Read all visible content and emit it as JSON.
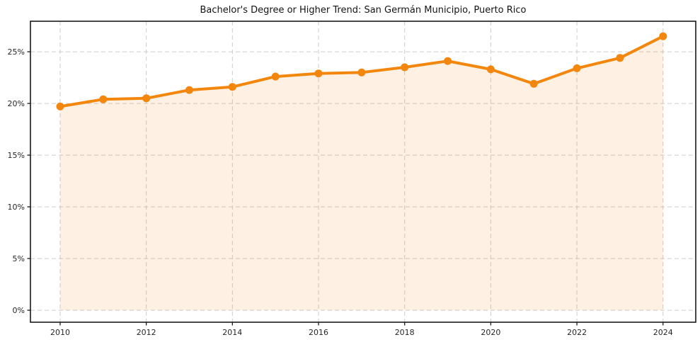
{
  "page": {
    "background": "#ffffff"
  },
  "chart_data": {
    "type": "line",
    "title": "Bachelor's Degree or Higher Trend: San Germán Municipio, Puerto Rico",
    "series": [
      {
        "name": "Bachelor's degree or higher",
        "x": [
          2010,
          2011,
          2012,
          2013,
          2014,
          2015,
          2016,
          2017,
          2018,
          2019,
          2020,
          2021,
          2022,
          2023,
          2024
        ],
        "values": [
          19.7,
          20.4,
          20.5,
          21.3,
          21.6,
          22.6,
          22.9,
          23.0,
          23.5,
          24.1,
          23.3,
          21.9,
          23.4,
          24.4,
          26.5
        ],
        "unit": "%"
      }
    ],
    "x_ticks": [
      2010,
      2012,
      2014,
      2016,
      2018,
      2020,
      2022,
      2024
    ],
    "x_tick_labels": [
      "2010",
      "2012",
      "2014",
      "2016",
      "2018",
      "2020",
      "2022",
      "2024"
    ],
    "y_ticks": [
      0,
      5,
      10,
      15,
      20,
      25
    ],
    "y_tick_labels": [
      "0%",
      "5%",
      "10%",
      "15%",
      "20%",
      "25%"
    ],
    "xlim": [
      2009.31,
      2024.76
    ],
    "ylim": [
      -1.16,
      27.95
    ],
    "xlabel": "",
    "ylabel": "",
    "grid": true,
    "grid_style": "dashed",
    "legend": "none",
    "area_baseline": 0,
    "marker": "circle",
    "colors": {
      "line": "#f3870e",
      "marker": "#f3870e",
      "area_fill": "rgba(243,134,18,0.12)",
      "grid": "#cccccc",
      "spine": "#1a1a1a",
      "tick_text": "#262626",
      "title_text": "#141414",
      "background": "#ffffff"
    }
  }
}
